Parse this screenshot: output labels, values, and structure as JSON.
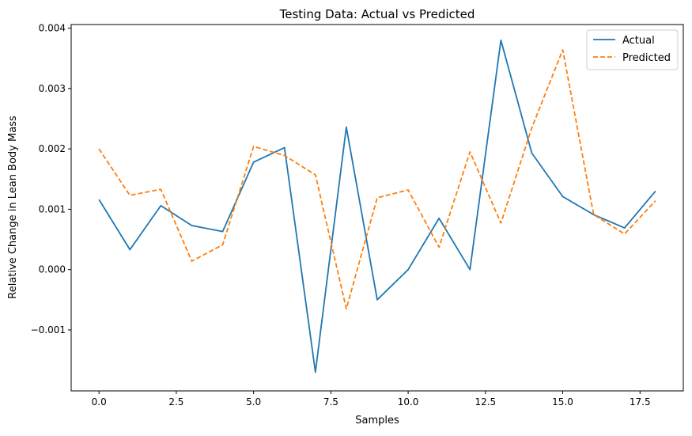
{
  "chart_data": {
    "type": "line",
    "title": "Testing Data: Actual vs Predicted",
    "xlabel": "Samples",
    "ylabel": "Relative Change in Lean Body Mass",
    "xlim": [
      -0.9,
      18.9
    ],
    "ylim": [
      -0.00201,
      0.00406
    ],
    "x": [
      0,
      1,
      2,
      3,
      4,
      5,
      6,
      7,
      8,
      9,
      10,
      11,
      12,
      13,
      14,
      15,
      16,
      17,
      18
    ],
    "x_ticks": [
      0.0,
      2.5,
      5.0,
      7.5,
      10.0,
      12.5,
      15.0,
      17.5
    ],
    "x_tick_labels": [
      "0.0",
      "2.5",
      "5.0",
      "7.5",
      "10.0",
      "12.5",
      "15.0",
      "17.5"
    ],
    "y_ticks": [
      -0.001,
      0.0,
      0.001,
      0.002,
      0.003,
      0.004
    ],
    "y_tick_labels": [
      "−0.001",
      "0.000",
      "0.001",
      "0.002",
      "0.003",
      "0.004"
    ],
    "grid": false,
    "legend": "top-right",
    "series": [
      {
        "name": "Actual",
        "color": "#1f77b4",
        "style": "solid",
        "values": [
          0.00116,
          0.00033,
          0.00106,
          0.00073,
          0.00063,
          0.00178,
          0.00202,
          -0.0017,
          0.00236,
          -0.0005,
          0.0,
          0.00085,
          0.0,
          0.0038,
          0.00193,
          0.00121,
          0.00091,
          0.00069,
          0.0013
        ]
      },
      {
        "name": "Predicted",
        "color": "#ff7f0e",
        "style": "dashed",
        "values": [
          0.002,
          0.00123,
          0.00133,
          0.00014,
          0.00041,
          0.00204,
          0.00189,
          0.00157,
          -0.00065,
          0.00119,
          0.00132,
          0.00037,
          0.00195,
          0.00077,
          0.00235,
          0.00364,
          0.00091,
          0.00059,
          0.00114
        ]
      }
    ]
  }
}
